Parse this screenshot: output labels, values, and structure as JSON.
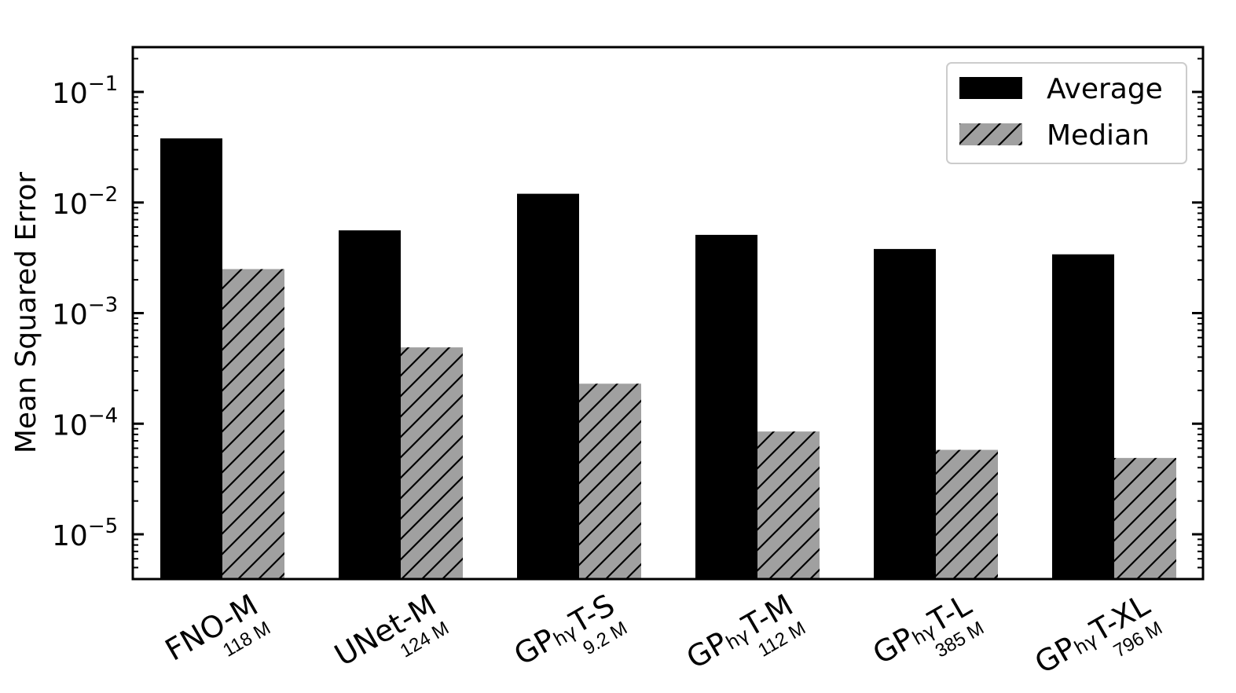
{
  "chart_data": {
    "type": "bar",
    "ylabel": "Mean Squared Error",
    "yscale": "log",
    "ylim": [
      4e-06,
      0.25
    ],
    "yticks": [
      {
        "value": 0.1,
        "base": "10",
        "exp": "−1"
      },
      {
        "value": 0.01,
        "base": "10",
        "exp": "−2"
      },
      {
        "value": 0.001,
        "base": "10",
        "exp": "−3"
      },
      {
        "value": 0.0001,
        "base": "10",
        "exp": "−4"
      },
      {
        "value": 1e-05,
        "base": "10",
        "exp": "−5"
      }
    ],
    "categories": [
      {
        "pre": "FNO-M",
        "sub": "",
        "post": "",
        "params": "118 M"
      },
      {
        "pre": "UNet-M",
        "sub": "",
        "post": "",
        "params": "124 M"
      },
      {
        "pre": "GP",
        "sub": "hγ",
        "post": "T-S",
        "params": "9.2 M"
      },
      {
        "pre": "GP",
        "sub": "hγ",
        "post": "T-M",
        "params": "112 M"
      },
      {
        "pre": "GP",
        "sub": "hγ",
        "post": "T-L",
        "params": "385 M"
      },
      {
        "pre": "GP",
        "sub": "hγ",
        "post": "T-XL",
        "params": "796 M"
      }
    ],
    "series": [
      {
        "name": "Average",
        "color": "#000000",
        "hatch": false,
        "values": [
          0.038,
          0.0056,
          0.012,
          0.0051,
          0.0038,
          0.0034
        ]
      },
      {
        "name": "Median",
        "color": "#a0a0a0",
        "hatch": true,
        "values": [
          0.0025,
          0.00049,
          0.00023,
          8.5e-05,
          5.8e-05,
          4.9e-05
        ]
      }
    ],
    "legend_position": "top-right",
    "grid": false
  }
}
